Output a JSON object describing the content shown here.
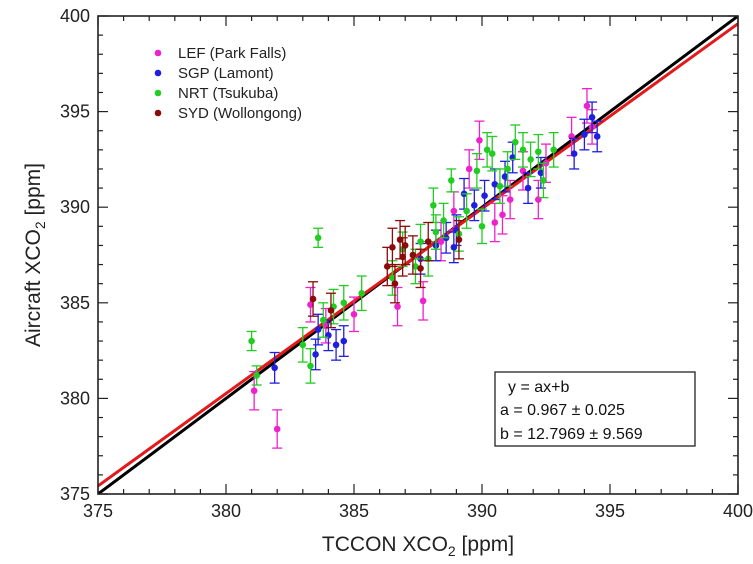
{
  "chart_data": {
    "type": "scatter",
    "xlabel_main": "TCCON XCO",
    "xlabel_sub": "2",
    "xlabel_unit": " [ppm]",
    "ylabel_main": "Aircraft XCO",
    "ylabel_sub": "2",
    "ylabel_unit": " [ppm]",
    "xlim": [
      375,
      400
    ],
    "ylim": [
      375,
      400
    ],
    "xticks": [
      "375",
      "380",
      "385",
      "390",
      "395",
      "400"
    ],
    "yticks": [
      "375",
      "380",
      "385",
      "390",
      "395",
      "400"
    ],
    "grid": false,
    "legend_position": "top-left",
    "fit_box": {
      "line1": "y = ax+b",
      "line2": "a = 0.967 ± 0.025",
      "line3": "b = 12.7969 ± 9.569"
    },
    "lines": [
      {
        "kind": "one-to-one",
        "color": "#000000",
        "slope": 1.0,
        "intercept": 0.0
      },
      {
        "kind": "fit",
        "color": "#e31a1c",
        "slope": 0.967,
        "intercept": 12.7969
      }
    ],
    "series": [
      {
        "name": "LEF (Park Falls)",
        "color": "#ee22cc",
        "points": [
          [
            381.1,
            380.4,
            1.0
          ],
          [
            382.0,
            378.4,
            1.0
          ],
          [
            383.3,
            384.9,
            0.9
          ],
          [
            383.9,
            383.8,
            0.9
          ],
          [
            385.0,
            384.4,
            0.9
          ],
          [
            386.7,
            384.8,
            1.0
          ],
          [
            387.7,
            385.1,
            1.0
          ],
          [
            388.9,
            389.8,
            1.0
          ],
          [
            389.5,
            392.0,
            1.0
          ],
          [
            390.5,
            389.2,
            1.0
          ],
          [
            390.8,
            389.6,
            1.0
          ],
          [
            391.1,
            390.4,
            1.0
          ],
          [
            391.6,
            391.9,
            1.0
          ],
          [
            392.2,
            390.4,
            1.0
          ],
          [
            392.5,
            392.3,
            1.0
          ],
          [
            393.5,
            393.7,
            1.0
          ],
          [
            394.1,
            395.3,
            0.9
          ],
          [
            394.3,
            394.2,
            0.9
          ],
          [
            389.9,
            393.5,
            1.0
          ],
          [
            388.4,
            388.2,
            1.0
          ]
        ]
      },
      {
        "name": "SGP (Lamont)",
        "color": "#1f1fdd",
        "points": [
          [
            381.9,
            381.6,
            0.8
          ],
          [
            383.5,
            382.3,
            0.8
          ],
          [
            383.6,
            383.6,
            0.8
          ],
          [
            384.0,
            383.3,
            0.8
          ],
          [
            384.3,
            382.8,
            0.8
          ],
          [
            384.6,
            383.0,
            0.8
          ],
          [
            387.6,
            387.3,
            0.8
          ],
          [
            388.2,
            388.0,
            0.8
          ],
          [
            388.6,
            388.4,
            0.8
          ],
          [
            389.0,
            388.8,
            0.8
          ],
          [
            389.3,
            390.7,
            0.8
          ],
          [
            389.7,
            390.1,
            0.8
          ],
          [
            390.1,
            390.6,
            0.8
          ],
          [
            390.5,
            391.2,
            0.8
          ],
          [
            390.9,
            391.6,
            0.8
          ],
          [
            391.2,
            392.6,
            0.8
          ],
          [
            391.8,
            391.0,
            0.8
          ],
          [
            392.3,
            391.8,
            0.8
          ],
          [
            393.6,
            392.8,
            0.8
          ],
          [
            394.0,
            393.8,
            0.8
          ],
          [
            394.5,
            393.7,
            0.8
          ],
          [
            394.3,
            394.7,
            0.8
          ],
          [
            388.9,
            387.9,
            0.8
          ]
        ]
      },
      {
        "name": "NRT (Tsukuba)",
        "color": "#22cc22",
        "points": [
          [
            381.0,
            383.0,
            0.5
          ],
          [
            381.2,
            381.2,
            0.5
          ],
          [
            383.0,
            382.8,
            0.9
          ],
          [
            383.3,
            381.7,
            0.9
          ],
          [
            383.6,
            388.4,
            0.5
          ],
          [
            383.8,
            384.1,
            0.9
          ],
          [
            384.2,
            384.8,
            0.9
          ],
          [
            384.6,
            385.0,
            0.9
          ],
          [
            385.3,
            385.5,
            0.9
          ],
          [
            386.5,
            386.3,
            0.9
          ],
          [
            386.9,
            387.8,
            0.9
          ],
          [
            387.4,
            386.9,
            0.9
          ],
          [
            387.9,
            387.3,
            0.9
          ],
          [
            388.2,
            388.7,
            0.9
          ],
          [
            388.5,
            389.3,
            0.9
          ],
          [
            388.8,
            391.4,
            0.6
          ],
          [
            389.1,
            388.6,
            0.9
          ],
          [
            389.4,
            389.8,
            0.9
          ],
          [
            389.8,
            391.9,
            0.9
          ],
          [
            390.0,
            389.0,
            0.9
          ],
          [
            390.2,
            393.0,
            0.9
          ],
          [
            390.4,
            392.8,
            0.9
          ],
          [
            390.7,
            391.1,
            0.9
          ],
          [
            391.0,
            392.0,
            0.9
          ],
          [
            391.3,
            393.4,
            0.9
          ],
          [
            391.6,
            393.0,
            0.9
          ],
          [
            391.9,
            392.5,
            0.9
          ],
          [
            392.2,
            392.9,
            0.9
          ],
          [
            392.4,
            391.4,
            0.9
          ],
          [
            392.8,
            393.0,
            0.9
          ],
          [
            387.6,
            388.2,
            0.9
          ],
          [
            388.1,
            390.1,
            0.9
          ]
        ]
      },
      {
        "name": "SYD (Wollongong)",
        "color": "#8b0a0a",
        "points": [
          [
            383.4,
            385.2,
            0.9
          ],
          [
            384.1,
            384.6,
            0.9
          ],
          [
            386.3,
            386.9,
            1.0
          ],
          [
            386.5,
            387.9,
            1.0
          ],
          [
            386.8,
            388.3,
            1.0
          ],
          [
            387.0,
            388.0,
            1.0
          ],
          [
            387.3,
            387.5,
            1.0
          ],
          [
            387.6,
            386.8,
            1.0
          ],
          [
            387.9,
            388.2,
            1.0
          ],
          [
            389.1,
            388.3,
            1.0
          ],
          [
            386.6,
            386.0,
            1.0
          ],
          [
            386.9,
            387.4,
            1.0
          ]
        ]
      }
    ]
  }
}
